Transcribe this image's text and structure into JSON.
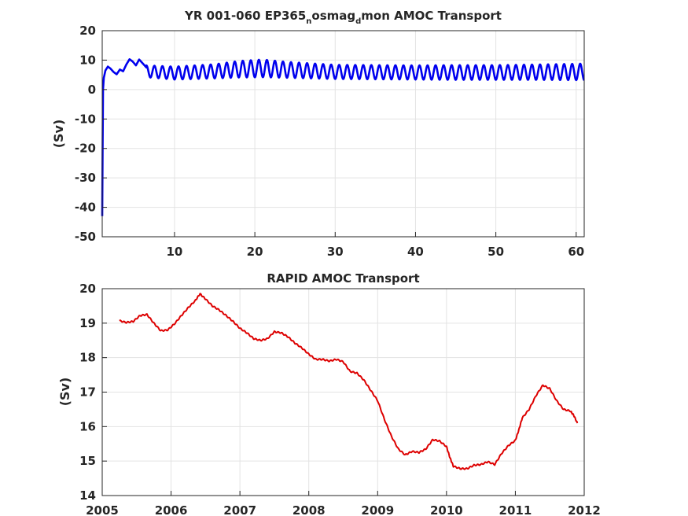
{
  "chart_data": [
    {
      "type": "line",
      "title_parts": [
        {
          "text": "YR 001-060 EP365",
          "sub": false
        },
        {
          "text": "n",
          "sub": true
        },
        {
          "text": "osmag",
          "sub": false
        },
        {
          "text": "d",
          "sub": true
        },
        {
          "text": "mon AMOC Transport",
          "sub": false
        }
      ],
      "ylabel": "(Sv)",
      "xlabel": "",
      "xlim": [
        1,
        61
      ],
      "ylim": [
        -50,
        20
      ],
      "xticks": [
        10,
        20,
        30,
        40,
        50,
        60
      ],
      "yticks": [
        -50,
        -40,
        -30,
        -20,
        -10,
        0,
        10,
        20
      ],
      "grid": true,
      "color": "#0000ee",
      "series": [
        {
          "description_points": [
            [
              1.0,
              -43
            ],
            [
              1.05,
              -20
            ],
            [
              1.1,
              0
            ],
            [
              1.2,
              4
            ],
            [
              1.4,
              6.5
            ],
            [
              1.7,
              7.8
            ],
            [
              2.0,
              7.2
            ],
            [
              2.4,
              6.0
            ],
            [
              2.8,
              5.2
            ],
            [
              3.2,
              6.8
            ],
            [
              3.6,
              6.2
            ],
            [
              4.0,
              8.5
            ],
            [
              4.4,
              10.3
            ],
            [
              4.8,
              9.5
            ],
            [
              5.2,
              8.2
            ],
            [
              5.6,
              10.2
            ],
            [
              6.0,
              9.0
            ],
            [
              6.5,
              7.5
            ]
          ],
          "seasonal_cycle": {
            "period_years": 1,
            "from_year": 6.5,
            "to_year": 61,
            "mean_and_amplitude_by_year": [
              [
                6.5,
                6.2,
                2.0
              ],
              [
                10,
                5.6,
                2.2
              ],
              [
                15,
                6.2,
                2.4
              ],
              [
                18,
                6.9,
                2.8
              ],
              [
                21,
                7.2,
                3.0
              ],
              [
                24,
                6.7,
                2.7
              ],
              [
                30,
                6.0,
                2.4
              ],
              [
                35,
                5.9,
                2.4
              ],
              [
                40,
                5.8,
                2.4
              ],
              [
                45,
                5.8,
                2.5
              ],
              [
                50,
                5.8,
                2.5
              ],
              [
                55,
                5.9,
                2.6
              ],
              [
                61,
                6.0,
                2.8
              ]
            ]
          }
        }
      ]
    },
    {
      "type": "line",
      "title": "RAPID AMOC Transport",
      "ylabel": "(Sv)",
      "xlabel": "",
      "xlim": [
        2005,
        2012
      ],
      "ylim": [
        14,
        20
      ],
      "xticks": [
        2005,
        2006,
        2007,
        2008,
        2009,
        2010,
        2011,
        2012
      ],
      "yticks": [
        14,
        15,
        16,
        17,
        18,
        19,
        20
      ],
      "grid": true,
      "color": "#dd0000",
      "series": [
        {
          "points": [
            [
              2005.25,
              19.07
            ],
            [
              2005.35,
              19.02
            ],
            [
              2005.45,
              19.05
            ],
            [
              2005.55,
              19.22
            ],
            [
              2005.65,
              19.25
            ],
            [
              2005.75,
              19.0
            ],
            [
              2005.85,
              18.78
            ],
            [
              2005.95,
              18.8
            ],
            [
              2006.05,
              18.98
            ],
            [
              2006.15,
              19.22
            ],
            [
              2006.25,
              19.45
            ],
            [
              2006.35,
              19.65
            ],
            [
              2006.42,
              19.85
            ],
            [
              2006.5,
              19.7
            ],
            [
              2006.6,
              19.5
            ],
            [
              2006.7,
              19.38
            ],
            [
              2006.8,
              19.22
            ],
            [
              2006.9,
              19.05
            ],
            [
              2007.0,
              18.85
            ],
            [
              2007.1,
              18.72
            ],
            [
              2007.2,
              18.55
            ],
            [
              2007.3,
              18.5
            ],
            [
              2007.4,
              18.55
            ],
            [
              2007.5,
              18.75
            ],
            [
              2007.6,
              18.72
            ],
            [
              2007.7,
              18.6
            ],
            [
              2007.8,
              18.42
            ],
            [
              2007.9,
              18.28
            ],
            [
              2008.0,
              18.1
            ],
            [
              2008.1,
              17.95
            ],
            [
              2008.2,
              17.95
            ],
            [
              2008.3,
              17.9
            ],
            [
              2008.4,
              17.95
            ],
            [
              2008.5,
              17.88
            ],
            [
              2008.6,
              17.6
            ],
            [
              2008.7,
              17.55
            ],
            [
              2008.8,
              17.35
            ],
            [
              2008.9,
              17.05
            ],
            [
              2009.0,
              16.75
            ],
            [
              2009.1,
              16.2
            ],
            [
              2009.2,
              15.72
            ],
            [
              2009.3,
              15.35
            ],
            [
              2009.4,
              15.18
            ],
            [
              2009.5,
              15.28
            ],
            [
              2009.6,
              15.25
            ],
            [
              2009.7,
              15.35
            ],
            [
              2009.8,
              15.62
            ],
            [
              2009.9,
              15.58
            ],
            [
              2010.0,
              15.42
            ],
            [
              2010.05,
              15.1
            ],
            [
              2010.1,
              14.85
            ],
            [
              2010.2,
              14.78
            ],
            [
              2010.3,
              14.78
            ],
            [
              2010.4,
              14.88
            ],
            [
              2010.5,
              14.9
            ],
            [
              2010.6,
              14.98
            ],
            [
              2010.7,
              14.9
            ],
            [
              2010.8,
              15.22
            ],
            [
              2010.9,
              15.45
            ],
            [
              2011.0,
              15.6
            ],
            [
              2011.05,
              15.9
            ],
            [
              2011.1,
              16.25
            ],
            [
              2011.2,
              16.5
            ],
            [
              2011.3,
              16.9
            ],
            [
              2011.4,
              17.2
            ],
            [
              2011.5,
              17.1
            ],
            [
              2011.6,
              16.75
            ],
            [
              2011.7,
              16.5
            ],
            [
              2011.8,
              16.45
            ],
            [
              2011.85,
              16.32
            ],
            [
              2011.9,
              16.1
            ]
          ]
        }
      ]
    }
  ]
}
